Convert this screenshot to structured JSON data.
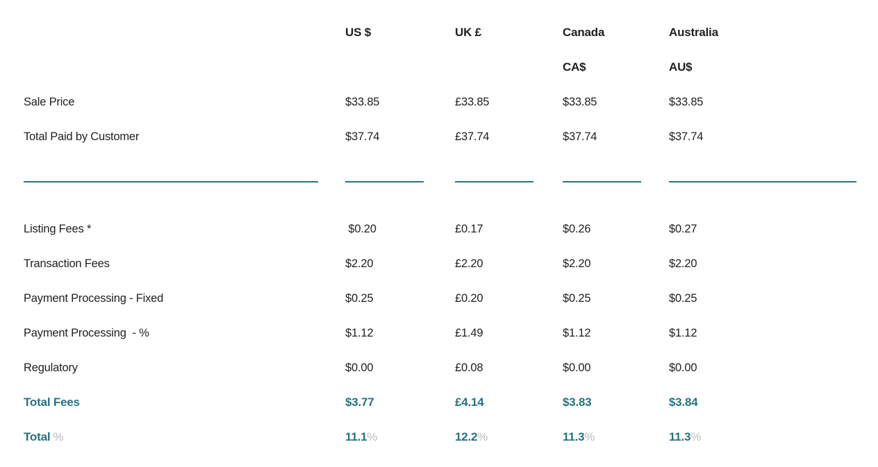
{
  "colors": {
    "background": "#ffffff",
    "text": "#1f1f1f",
    "accent_teal": "#26737e",
    "divider_teal": "#2a7380",
    "percent_sign_gray": "#b9bdbd"
  },
  "chart_data": {
    "type": "table",
    "title": "",
    "header": {
      "line1": [
        "US $",
        "UK £",
        "Canada",
        "Australia"
      ],
      "line2": [
        "",
        "",
        "CA$",
        "AU$"
      ]
    },
    "rows_top": [
      {
        "label": "Sale Price",
        "values": [
          "$33.85",
          "£33.85",
          "$33.85",
          "$33.85"
        ]
      },
      {
        "label": "Total Paid by Customer",
        "values": [
          "$37.74",
          "£37.74",
          "$37.74",
          "$37.74"
        ]
      }
    ],
    "rows_fees": [
      {
        "label": "Listing Fees *",
        "values": [
          " $0.20",
          "£0.17",
          "$0.26",
          "$0.27"
        ]
      },
      {
        "label": "Transaction Fees",
        "values": [
          "$2.20",
          "£2.20",
          "$2.20",
          "$2.20"
        ]
      },
      {
        "label": "Payment Processing - Fixed",
        "values": [
          "$0.25",
          "£0.20",
          "$0.25",
          "$0.25"
        ]
      },
      {
        "label": "Payment Processing  - %",
        "values": [
          "$1.12",
          "£1.49",
          "$1.12",
          "$1.12"
        ]
      },
      {
        "label": "Regulatory",
        "values": [
          "$0.00",
          "£0.08",
          "$0.00",
          "$0.00"
        ]
      }
    ],
    "row_total_fees": {
      "label": "Total Fees",
      "values": [
        "$3.77",
        "£4.14",
        "$3.83",
        "$3.84"
      ]
    },
    "row_total_percent": {
      "label": "Total",
      "percent_sign": "%",
      "values": [
        "11.1",
        "12.2",
        "11.3",
        "11.3"
      ]
    }
  }
}
